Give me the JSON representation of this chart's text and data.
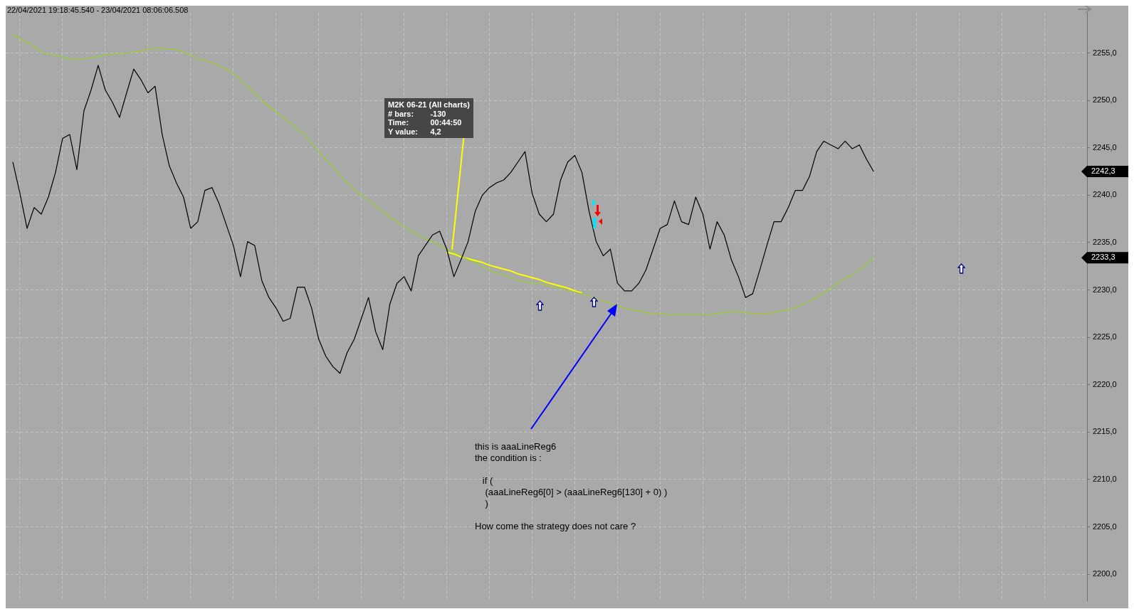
{
  "chart_data": {
    "type": "line",
    "title": "22/04/2021 19:18:45.540 - 23/04/2021 08:06:06.508",
    "categories": [
      null,
      null,
      null,
      null,
      null,
      null,
      null,
      null,
      null,
      null,
      null,
      null,
      null,
      null,
      null,
      null,
      null,
      null,
      null,
      null,
      null,
      null,
      null,
      null,
      null,
      null,
      null,
      null,
      null,
      null,
      null,
      null,
      null,
      null,
      null,
      null,
      null,
      null,
      null,
      null,
      null,
      null,
      null,
      null,
      null,
      null,
      null,
      null,
      null,
      null,
      null,
      null,
      null,
      null,
      null,
      null,
      null,
      null,
      null,
      null,
      null,
      null,
      null,
      null,
      null,
      null,
      null,
      null,
      null,
      null,
      null,
      null,
      null,
      null,
      null,
      null,
      null,
      null,
      null,
      null,
      null,
      null,
      null,
      null,
      null,
      null,
      null,
      null,
      null,
      null,
      null,
      null,
      null,
      null,
      null,
      null,
      null,
      null,
      null,
      null,
      null,
      null,
      null,
      null,
      null,
      null,
      null,
      null,
      null,
      null,
      null,
      null,
      null,
      null,
      null,
      null,
      null,
      null,
      null,
      null,
      null,
      null,
      null,
      null,
      null,
      null,
      null,
      null,
      null,
      null,
      null,
      null,
      null,
      null,
      null,
      null,
      null,
      null,
      null,
      null,
      null,
      null,
      null,
      null,
      null,
      null,
      null,
      null,
      null,
      null,
      null,
      null,
      null
    ],
    "series": [
      {
        "color": "#000000",
        "values": [
          null,
          2243.5,
          2240.2,
          2236.5,
          2238.7,
          2238.0,
          2239.8,
          2242.4,
          2246.0,
          2246.4,
          2242.7,
          2248.9,
          2251.1,
          2253.7,
          2251.1,
          2249.8,
          2248.2,
          2250.8,
          2253.3,
          2252.2,
          2250.8,
          2251.5,
          2246.4,
          2243.1,
          2241.3,
          2239.8,
          2236.5,
          2237.2,
          2240.5,
          2240.8,
          2239.1,
          2236.9,
          2234.7,
          2231.4,
          2235.1,
          2234.7,
          2231.0,
          2229.2,
          2228.1,
          2226.7,
          2227.0,
          2230.3,
          2230.3,
          2228.1,
          2224.8,
          2223.0,
          2221.9,
          2221.2,
          2223.4,
          2224.8,
          2227.0,
          2229.2,
          2225.6,
          2223.7,
          2228.5,
          2230.7,
          2231.4,
          2229.9,
          2233.6,
          2234.7,
          2235.8,
          2236.2,
          2234.3,
          2231.4,
          2233.2,
          2235.1,
          2238.3,
          2240.0,
          2240.8,
          2241.3,
          2241.6,
          2242.4,
          2243.5,
          2244.6,
          2240.2,
          2238.0,
          2237.2,
          2238.0,
          2241.6,
          2243.5,
          2244.2,
          2242.4,
          2238.3,
          2235.1,
          2233.6,
          2234.3,
          2230.7,
          2229.9,
          2229.9,
          2230.7,
          2232.1,
          2234.3,
          2236.5,
          2236.9,
          2239.4,
          2237.2,
          2236.9,
          2239.8,
          2238.0,
          2234.3,
          2237.2,
          2235.8,
          2233.2,
          2231.4,
          2229.2,
          2229.6,
          2232.1,
          2234.7,
          2237.2,
          2237.2,
          2238.7,
          2240.5,
          2240.5,
          2242.0,
          2244.6,
          2245.7,
          2245.3,
          2244.9,
          2245.7,
          2244.9,
          2245.3,
          2243.8,
          2242.5,
          null,
          null,
          null,
          null,
          null,
          null,
          null,
          null,
          null,
          null,
          null,
          null,
          null,
          null,
          null,
          null,
          null,
          null,
          null,
          null,
          null,
          null,
          null,
          null,
          null,
          null,
          null,
          null,
          null,
          null
        ]
      },
      {
        "color": "#9acd32",
        "values": [
          null,
          2257.0,
          2256.5,
          2256.1,
          2255.7,
          2255.1,
          2254.9,
          2254.7,
          2254.6,
          2254.4,
          2254.3,
          2254.4,
          2254.5,
          2254.6,
          2254.8,
          2254.9,
          2254.9,
          2255.0,
          2255.1,
          2255.2,
          2255.4,
          2255.5,
          2255.5,
          2255.4,
          2255.4,
          2255.1,
          2254.8,
          2254.4,
          2254.2,
          2254.0,
          2253.7,
          2253.3,
          2252.8,
          2252.2,
          2251.5,
          2250.8,
          2250.0,
          2249.4,
          2248.8,
          2248.2,
          2247.6,
          2247.0,
          2246.4,
          2245.5,
          2244.6,
          2243.8,
          2243.0,
          2242.1,
          2241.3,
          2240.6,
          2240.0,
          2239.5,
          2238.9,
          2238.3,
          2237.7,
          2237.2,
          2236.7,
          2236.2,
          2235.8,
          2235.4,
          2235.1,
          2234.7,
          2234.3,
          2234.0,
          2233.6,
          2233.2,
          2232.9,
          2232.5,
          2232.1,
          2231.8,
          2231.6,
          2231.3,
          2231.0,
          2230.9,
          2230.7,
          2230.7,
          2230.5,
          2230.3,
          2230.2,
          2229.9,
          2229.8,
          2229.6,
          2229.4,
          2229.1,
          2228.8,
          2228.6,
          2228.3,
          2228.1,
          2227.9,
          2227.8,
          2227.6,
          2227.5,
          2227.5,
          2227.4,
          2227.4,
          2227.4,
          2227.4,
          2227.4,
          2227.4,
          2227.4,
          2227.5,
          2227.6,
          2227.7,
          2227.7,
          2227.6,
          2227.5,
          2227.5,
          2227.5,
          2227.6,
          2227.8,
          2227.9,
          2228.1,
          2228.5,
          2228.8,
          2229.2,
          2229.7,
          2230.2,
          2230.7,
          2231.2,
          2231.6,
          2232.1,
          2232.7,
          2233.4,
          null,
          null,
          null,
          null,
          null,
          null,
          null,
          null,
          null,
          null,
          null,
          null,
          null,
          null,
          null,
          null,
          null,
          null,
          null,
          null,
          null,
          null,
          null,
          null,
          null,
          null,
          null,
          null,
          null,
          null
        ]
      },
      {
        "color": "#ffff00",
        "values": [
          null,
          null,
          null,
          null,
          null,
          null,
          null,
          null,
          null,
          null,
          null,
          null,
          null,
          null,
          null,
          null,
          null,
          null,
          null,
          null,
          null,
          null,
          null,
          null,
          null,
          null,
          null,
          null,
          null,
          null,
          null,
          null,
          null,
          null,
          null,
          null,
          null,
          null,
          null,
          null,
          null,
          null,
          null,
          null,
          null,
          null,
          null,
          null,
          null,
          null,
          null,
          null,
          null,
          null,
          null,
          null,
          null,
          null,
          null,
          null,
          null,
          null,
          2234.0,
          2233.8,
          2233.5,
          2233.3,
          2233.1,
          2232.9,
          2232.6,
          2232.4,
          2232.2,
          2232.0,
          2231.7,
          2231.5,
          2231.3,
          2231.1,
          2230.8,
          2230.6,
          2230.4,
          2230.2,
          2229.9,
          2229.7,
          null,
          null,
          null,
          null,
          null,
          null,
          null,
          null,
          null,
          null,
          null,
          null,
          null,
          null,
          null,
          null,
          null,
          null,
          null,
          null,
          null,
          null,
          null,
          null,
          null,
          null,
          null,
          null,
          null,
          null,
          null,
          null,
          null,
          null,
          null,
          null,
          null,
          null,
          null,
          null,
          null,
          null,
          null,
          null,
          null,
          null,
          null,
          null,
          null,
          null,
          null,
          null,
          null,
          null,
          null,
          null,
          null,
          null,
          null,
          null,
          null,
          null,
          null,
          null,
          null,
          null,
          null,
          null,
          null,
          null,
          null
        ]
      }
    ],
    "ylim": [
      2197.2,
      2259.2
    ],
    "yticks": [
      {
        "value": 2200,
        "label": "2200,0"
      },
      {
        "value": 2205,
        "label": "2205,0"
      },
      {
        "value": 2210,
        "label": "2210,0"
      },
      {
        "value": 2215,
        "label": "2215,0"
      },
      {
        "value": 2220,
        "label": "2220,0"
      },
      {
        "value": 2225,
        "label": "2225,0"
      },
      {
        "value": 2230,
        "label": "2230,0"
      },
      {
        "value": 2235,
        "label": "2235,0"
      },
      {
        "value": 2240,
        "label": "2240,0"
      },
      {
        "value": 2245,
        "label": "2245,0"
      },
      {
        "value": 2250,
        "label": "2250,0"
      },
      {
        "value": 2255,
        "label": "2255,0"
      }
    ],
    "grid": true,
    "tick_labels": "y",
    "annotations": [
      "M2K 06-21 (All charts)\n# bars:\t-130\nTime:\t00:44:50\nY value:\t4,2",
      "this is aaaLineReg6\nthe condition is :\n\n   if (\n    (aaaLineReg6[0] > (aaaLineReg6[130] + 0) )\n    )\n\nHow come the strategy does not care ?",
      "2242,3",
      "2233,3"
    ]
  }
}
